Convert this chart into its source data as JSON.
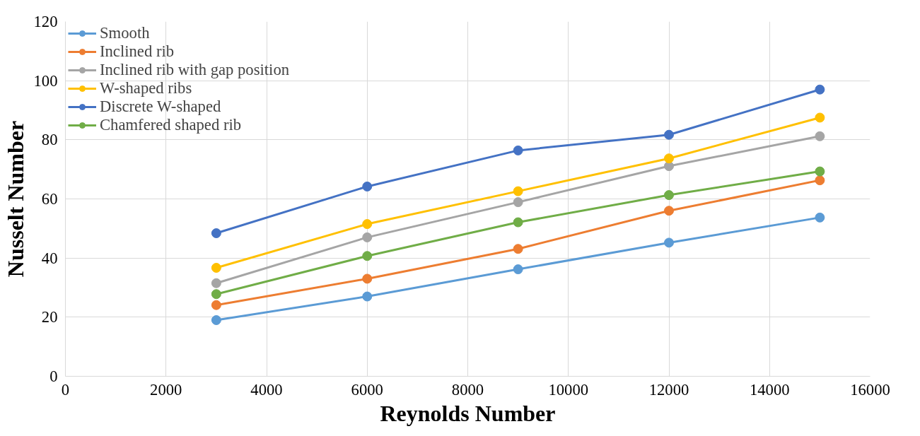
{
  "chart_data": {
    "type": "line",
    "xlabel": "Reynolds Number",
    "ylabel": "Nusselt Number",
    "x": [
      3000,
      6000,
      9000,
      12000,
      15000
    ],
    "series": [
      {
        "name": "Smooth",
        "color": "#5b9bd5",
        "values": [
          19.0,
          27.0,
          36.2,
          45.2,
          53.7
        ]
      },
      {
        "name": "Inclined rib",
        "color": "#ed7d31",
        "values": [
          24.1,
          33.0,
          43.1,
          56.0,
          66.3
        ]
      },
      {
        "name": "Inclined rib with gap position",
        "color": "#a5a5a5",
        "values": [
          31.5,
          47.0,
          58.9,
          71.1,
          81.2
        ]
      },
      {
        "name": "W-shaped ribs",
        "color": "#ffc000",
        "values": [
          36.7,
          51.5,
          62.6,
          73.7,
          87.5
        ]
      },
      {
        "name": "Discrete W-shaped",
        "color": "#4472c4",
        "values": [
          48.4,
          64.2,
          76.4,
          81.7,
          97.0
        ]
      },
      {
        "name": "Chamfered shaped rib",
        "color": "#70ad47",
        "values": [
          27.8,
          40.7,
          52.1,
          61.3,
          69.3
        ]
      }
    ],
    "xlim": [
      0,
      16000
    ],
    "xticks": [
      0,
      2000,
      4000,
      6000,
      8000,
      10000,
      12000,
      14000,
      16000
    ],
    "ylim": [
      0,
      120
    ],
    "yticks": [
      0,
      20,
      40,
      60,
      80,
      100,
      120
    ],
    "grid": true,
    "legend": "top left",
    "marker": "circle",
    "line_style": "solid"
  }
}
